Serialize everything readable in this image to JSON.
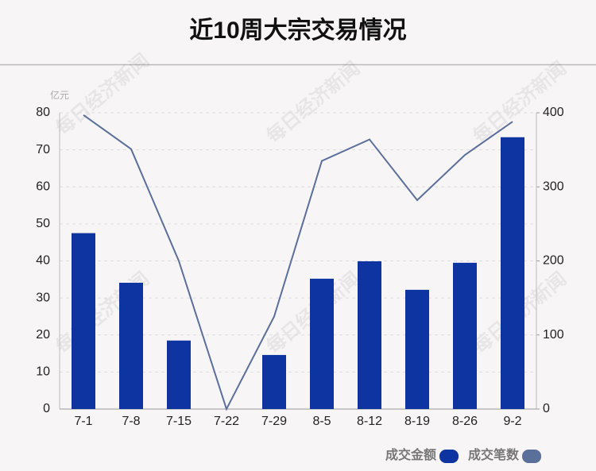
{
  "chart_data": {
    "type": "bar_line",
    "title": "近10周大宗交易情况",
    "y_unit": "亿元",
    "watermark": "每日经济新闻",
    "categories": [
      "7-1",
      "7-8",
      "7-15",
      "7-22",
      "7-29",
      "8-5",
      "8-12",
      "8-19",
      "8-26",
      "9-2"
    ],
    "series": [
      {
        "name": "成交金额",
        "type": "bar",
        "color": "#0d34a0",
        "values": [
          47.5,
          34.1,
          18.5,
          0,
          14.6,
          35.2,
          39.9,
          32.2,
          39.5,
          73.4
        ]
      },
      {
        "name": "成交笔数",
        "type": "line",
        "axis": "y2",
        "color": "#5b6f9b",
        "values": [
          397,
          351,
          200,
          0,
          125,
          335,
          364,
          282,
          343,
          388
        ]
      }
    ],
    "ylim": [
      0,
      80
    ],
    "yticks": [
      0,
      10,
      20,
      30,
      40,
      50,
      60,
      70,
      80
    ],
    "y2lim": [
      0,
      400
    ],
    "y2ticks": [
      0,
      100,
      200,
      300,
      400
    ],
    "grid": true
  }
}
